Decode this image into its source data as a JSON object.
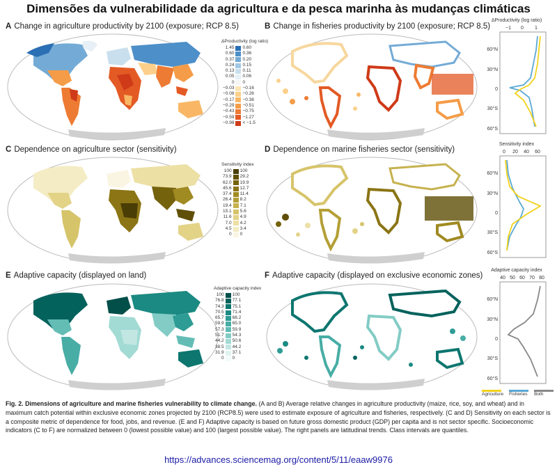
{
  "title": "Dimensões da vulnerabilidade da agricultura e da pesca marinha às mudanças climáticas",
  "panels": {
    "a": {
      "letter": "A",
      "text": "Change in agriculture productivity by 2100 (exposure; RCP 8.5)"
    },
    "b": {
      "letter": "B",
      "text": "Change in fisheries productivity by 2100 (exposure; RCP 8.5)"
    },
    "c": {
      "letter": "C",
      "text": "Dependence on agriculture sector (sensitivity)"
    },
    "d": {
      "letter": "D",
      "text": "Dependence on marine fisheries sector (sensitivity)"
    },
    "e": {
      "letter": "E",
      "text": "Adaptive capacity (displayed on land)"
    },
    "f": {
      "letter": "F",
      "text": "Adaptive capacity (displayed on exclusive economic zones)"
    }
  },
  "legend_productivity": {
    "title": "ΔProductivity (log ratio)",
    "left": [
      "1.45",
      "0.60",
      "0.37",
      "0.24",
      "0.13",
      "0.05",
      "0",
      "−0.03",
      "−0.08",
      "−0.17",
      "−0.29",
      "−0.43",
      "−0.59",
      "−0.98"
    ],
    "right": [
      "0.60",
      "0.36",
      "0.20",
      "0.15",
      "0.11",
      "0.06",
      "0",
      "−0.16",
      "−0.26",
      "−0.38",
      "−0.51",
      "−0.75",
      "−1.27",
      "< −1.5"
    ],
    "left_colors": [
      "#2b6fb4",
      "#4d8fc8",
      "#74abd6",
      "#a2c8e4",
      "#c9dfee",
      "#e6f0f6",
      "#f5f5f5",
      "#fde4b5",
      "#fcd08a",
      "#f9b766",
      "#f59c48",
      "#ee7b33",
      "#e35a24",
      "#cf3a18"
    ],
    "right_colors": [
      "#2b6fb4",
      "#4d8fc8",
      "#74abd6",
      "#a2c8e4",
      "#c9dfee",
      "#e6f0f6",
      "#f5f5f5",
      "#fde4b5",
      "#fcd08a",
      "#f9b766",
      "#f59c48",
      "#ee7b33",
      "#e35a24",
      "#cf3a18"
    ]
  },
  "legend_sensitivity": {
    "title": "Sensitivity index",
    "left": [
      "100",
      "73.9",
      "62.0",
      "45.6",
      "37.4",
      "26.4",
      "19.4",
      "15.1",
      "11.6",
      "7.0",
      "4.5",
      "0"
    ],
    "right": [
      "100",
      "29.2",
      "19.9",
      "12.7",
      "11.4",
      "8.2",
      "7.1",
      "5.6",
      "4.9",
      "4.2",
      "3.4",
      "0"
    ],
    "colors": [
      "#4a3d05",
      "#5f4f08",
      "#75620d",
      "#8b7515",
      "#a08a22",
      "#b49f36",
      "#c6b24e",
      "#d6c46a",
      "#e2d387",
      "#ece0a5",
      "#f4ecc4",
      "#faf5e2"
    ]
  },
  "legend_adaptive": {
    "title": "Adaptive capacity index",
    "left": [
      "100",
      "76.8",
      "74.3",
      "70.5",
      "65.7",
      "59.9",
      "57.3",
      "51.7",
      "44.2",
      "38.5",
      "31.9",
      "0"
    ],
    "right": [
      "100",
      "77.1",
      "75.1",
      "71.4",
      "68.2",
      "65.0",
      "59.9",
      "54.3",
      "50.6",
      "44.2",
      "37.1",
      "0"
    ],
    "colors": [
      "#024f4a",
      "#04625c",
      "#0d766f",
      "#1b8a82",
      "#2e9c94",
      "#47ada5",
      "#63bdb5",
      "#82ccc5",
      "#a2dad4",
      "#c2e7e2",
      "#dff3f0",
      "#f2fbf9"
    ]
  },
  "side_panels": {
    "top": {
      "axis_title": "ΔProductivity (log ratio)",
      "ticks": [
        "−1",
        "0",
        "1"
      ],
      "lat": [
        "60°N",
        "30°N",
        "0",
        "30°S",
        "60°S"
      ]
    },
    "mid": {
      "axis_title": "Sensitivity index",
      "ticks": [
        "0",
        "20",
        "40",
        "60"
      ],
      "lat": [
        "60°N",
        "30°N",
        "0",
        "30°S",
        "60°S"
      ]
    },
    "bot": {
      "axis_title": "Adaptive capacity index",
      "ticks": [
        "40",
        "50",
        "60",
        "70",
        "80"
      ],
      "lat": [
        "60°N",
        "30°N",
        "0",
        "30°S",
        "60°S"
      ]
    }
  },
  "series_legend": {
    "agriculture": "Agriculture",
    "fisheries": "Fisheries",
    "both": "Both"
  },
  "colors": {
    "agriculture": "#f2d21b",
    "fisheries": "#5aa8d4",
    "both": "#888888",
    "ocean": "#ffffff",
    "land_gray": "#cfcfcf"
  },
  "caption": {
    "bold": "Fig. 2. Dimensions of agriculture and marine fisheries vulnerability to climate change.",
    "text": " (A and B) Average relative changes in agriculture productivity (maize, rice, soy, and wheat) and in maximum catch potential within exclusive economic zones projected by 2100 (RCP8.5) were used to estimate exposure of agriculture and fisheries, respectively. (C and D) Sensitivity on each sector is a composite metric of dependence for food, jobs, and revenue. (E and F) Adaptive capacity is based on future gross domestic product (GDP) per capita and is not sector specific. Socioeconomic indicators (C to F) are normalized between 0 (lowest possible value) and 100 (largest possible value). The right panels are latitudinal trends. Class intervals are quantiles."
  },
  "url": "https://advances.sciencemag.org/content/5/11/eaaw9976"
}
